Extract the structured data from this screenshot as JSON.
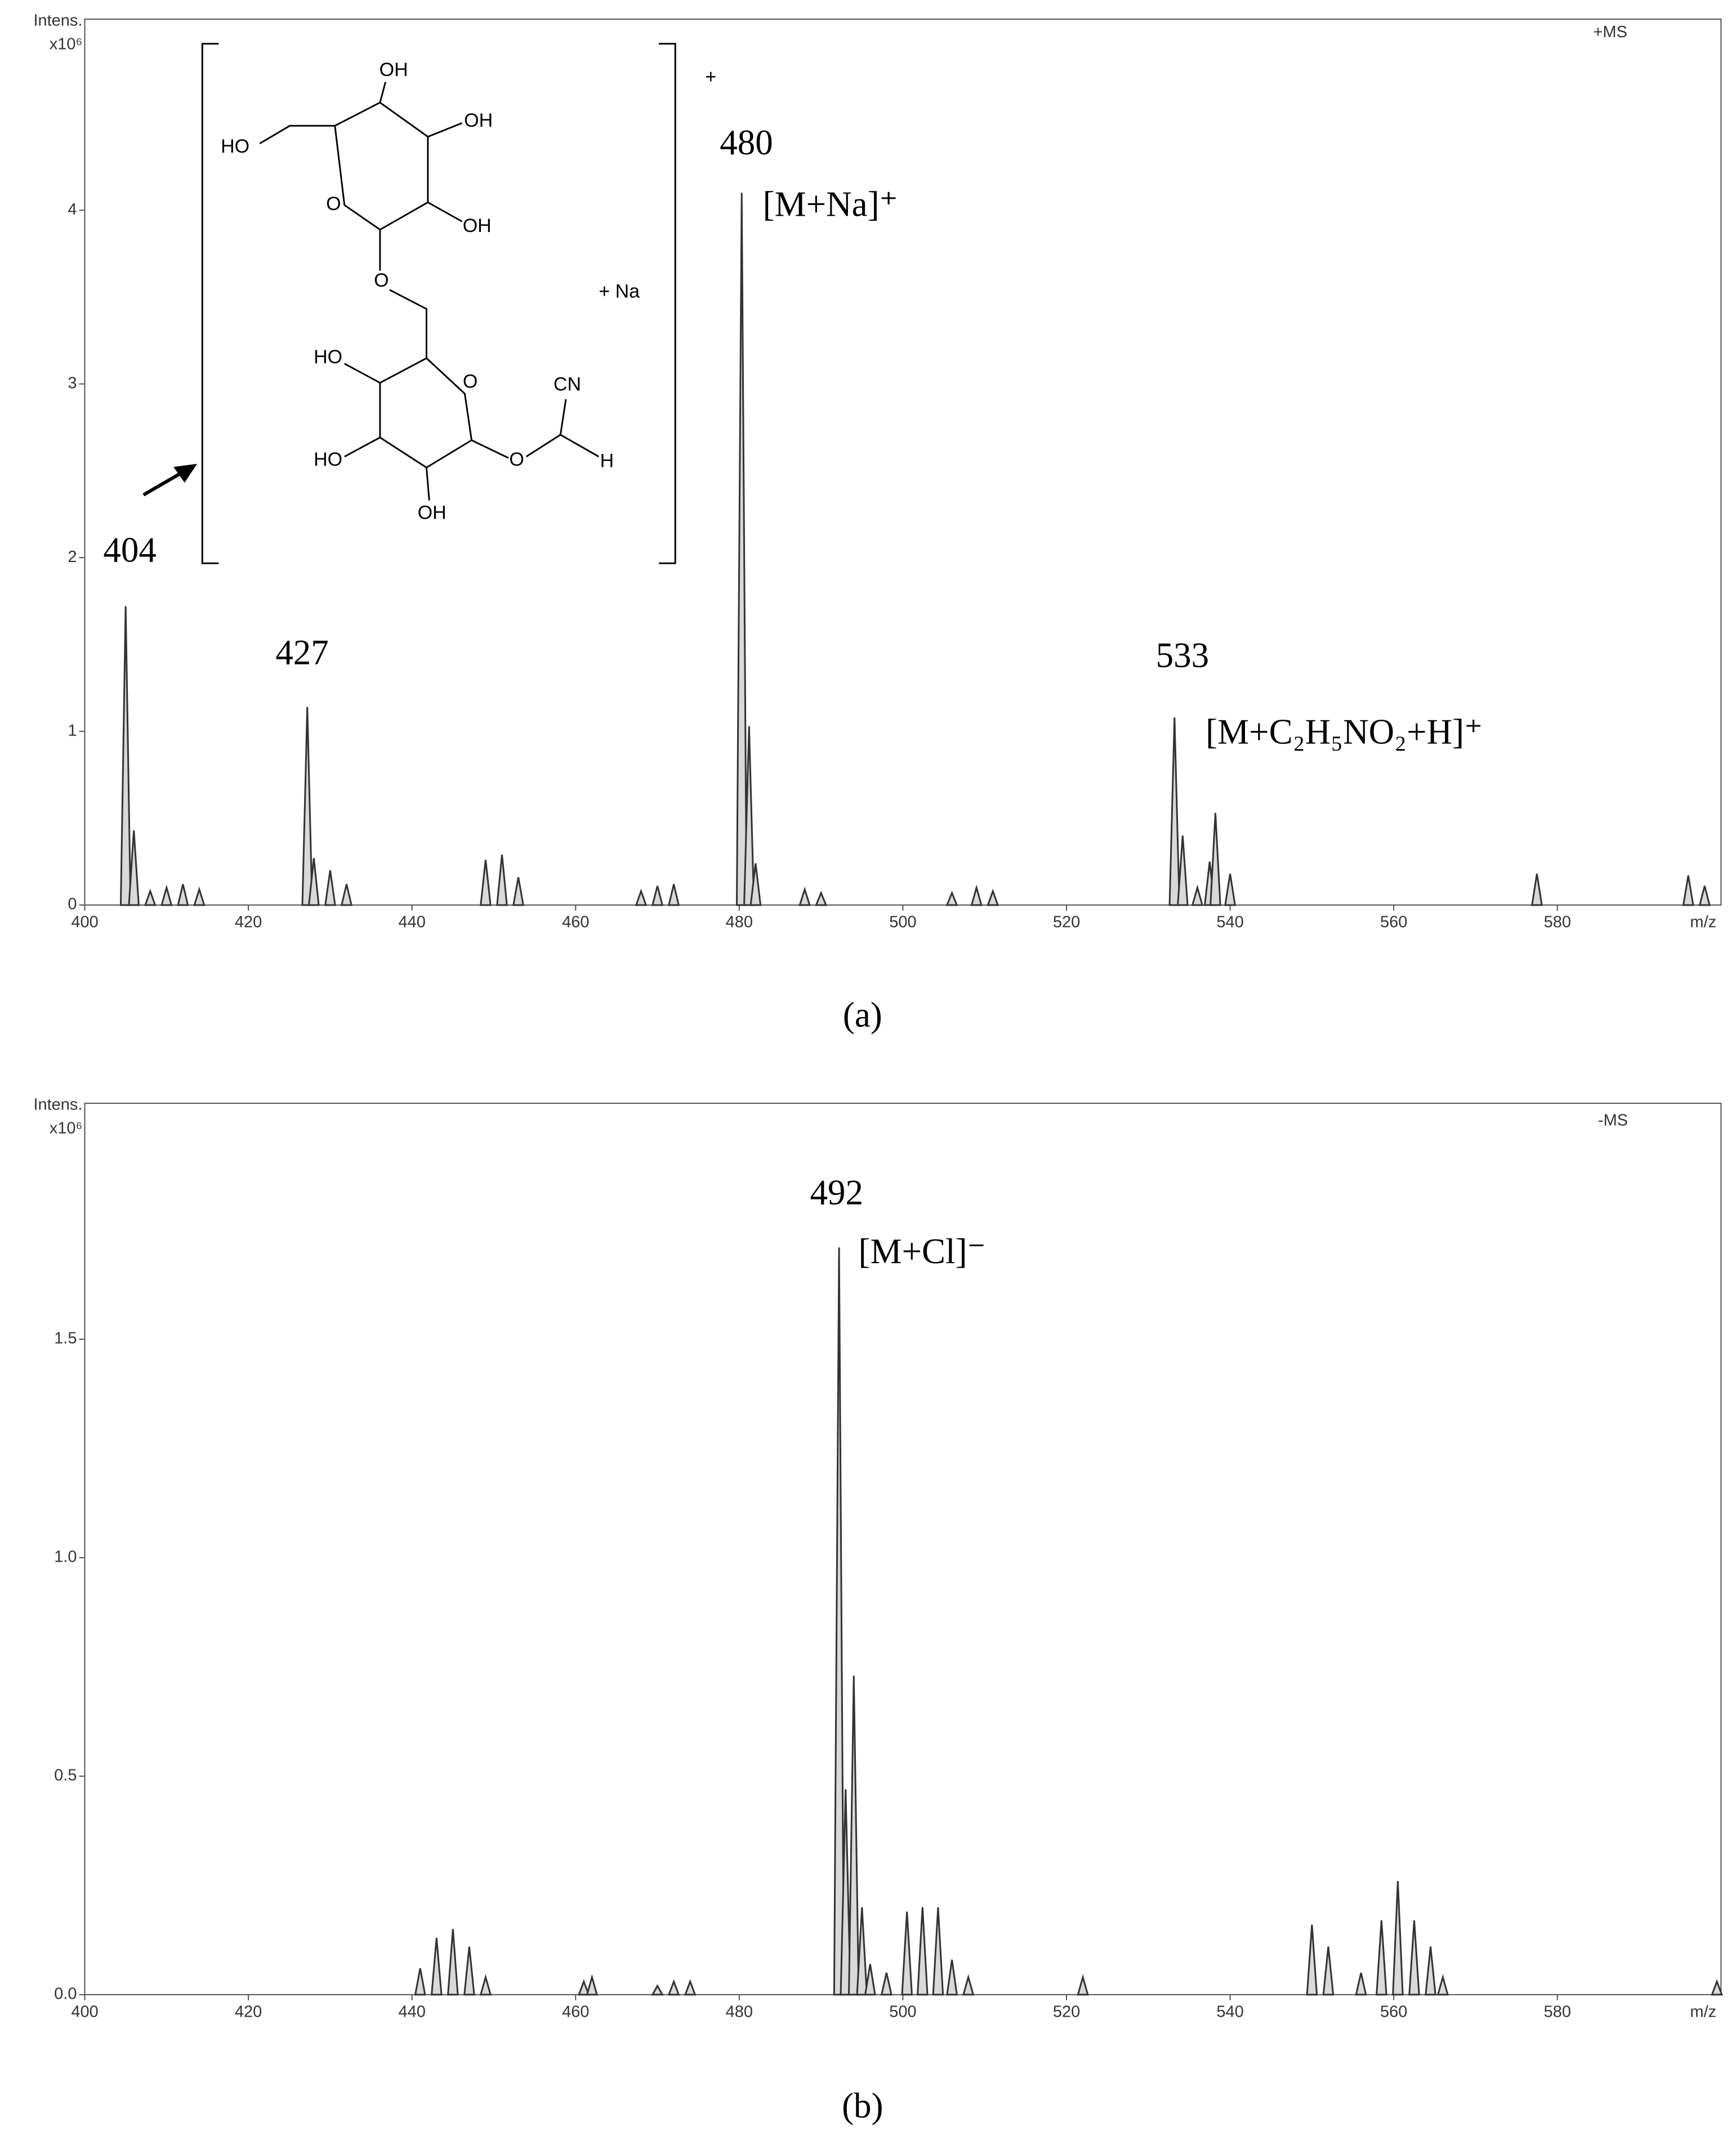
{
  "chart_data": [
    {
      "type": "spectrum",
      "mode": "+MS",
      "y_label": "Intens.",
      "y_unit": "x10⁶",
      "x_label": "m/z",
      "caption": "(a)",
      "fill": "#d9d9d9",
      "line_color": "#333333",
      "xlim": [
        400,
        600
      ],
      "ylim": [
        0,
        5.1
      ],
      "xticks": [
        400,
        420,
        440,
        460,
        480,
        500,
        520,
        540,
        560,
        580
      ],
      "yticks": [
        0,
        1,
        2,
        3,
        4
      ],
      "x": [
        405,
        406,
        408,
        410,
        412,
        414,
        427.2,
        428,
        430,
        432,
        449,
        451,
        453,
        468,
        470,
        472,
        480.3,
        481.2,
        482,
        488,
        490,
        506,
        509,
        511,
        533.2,
        534.2,
        536,
        537.5,
        538.2,
        540,
        577.5,
        596,
        598
      ],
      "values": [
        1.72,
        0.43,
        0.08,
        0.1,
        0.12,
        0.09,
        1.14,
        0.27,
        0.2,
        0.12,
        0.26,
        0.29,
        0.16,
        0.08,
        0.11,
        0.12,
        4.1,
        1.03,
        0.24,
        0.09,
        0.07,
        0.07,
        0.1,
        0.08,
        1.08,
        0.4,
        0.1,
        0.25,
        0.53,
        0.18,
        0.18,
        0.17,
        0.11
      ],
      "annotations": [
        "404",
        "427",
        "480",
        "[M+Na]⁺",
        "533",
        "[M+C₂H₅NO₂+H]⁺"
      ],
      "structure_labels": [
        "OH",
        "HO",
        "OH",
        "O",
        "OH",
        "O",
        "+ Na",
        "HO",
        "O",
        "CN",
        "HO",
        "O",
        "H",
        "OH",
        "+"
      ]
    },
    {
      "type": "spectrum",
      "mode": "-MS",
      "y_label": "Intens.",
      "y_unit": "x10⁶",
      "x_label": "m/z",
      "caption": "(b)",
      "fill": "#d9d9d9",
      "line_color": "#333333",
      "xlim": [
        400,
        600
      ],
      "ylim": [
        0,
        2.04
      ],
      "xticks": [
        400,
        420,
        440,
        460,
        480,
        500,
        520,
        540,
        560,
        580
      ],
      "yticks": [
        {
          "value": 0,
          "label": "0.0"
        },
        0.5,
        {
          "value": 1,
          "label": "1.0"
        },
        1.5
      ],
      "x": [
        441,
        443,
        445,
        447,
        449,
        461,
        462,
        470,
        472,
        474,
        492.2,
        493,
        494,
        495,
        496,
        498,
        500.5,
        502.4,
        504.3,
        506,
        508,
        522,
        550,
        552,
        556,
        558.5,
        560.5,
        562.5,
        564.5,
        566,
        599.5
      ],
      "values": [
        0.06,
        0.13,
        0.15,
        0.11,
        0.04,
        0.03,
        0.04,
        0.02,
        0.03,
        0.03,
        1.71,
        0.47,
        0.73,
        0.2,
        0.07,
        0.05,
        0.19,
        0.2,
        0.2,
        0.08,
        0.04,
        0.04,
        0.16,
        0.11,
        0.05,
        0.17,
        0.26,
        0.17,
        0.11,
        0.04,
        0.03
      ],
      "annotations": [
        "492",
        "[M+Cl]⁻"
      ]
    }
  ]
}
